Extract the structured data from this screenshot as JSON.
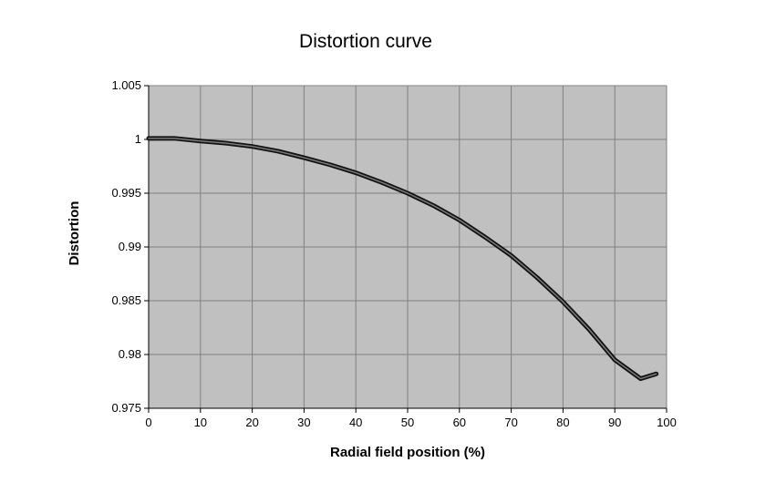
{
  "chart_data": {
    "type": "line",
    "title": "Distortion curve",
    "xlabel": "Radial field position (%)",
    "ylabel": "Distortion",
    "xlim": [
      0,
      100
    ],
    "ylim": [
      0.975,
      1.005
    ],
    "xticks": [
      0,
      10,
      20,
      30,
      40,
      50,
      60,
      70,
      80,
      90,
      100
    ],
    "yticks": [
      0.975,
      0.98,
      0.985,
      0.99,
      0.995,
      1,
      1.005
    ],
    "xtick_labels": [
      "0",
      "10",
      "20",
      "30",
      "40",
      "50",
      "60",
      "70",
      "80",
      "90",
      "100"
    ],
    "ytick_labels": [
      "0.975",
      "0.98",
      "0.985",
      "0.99",
      "0.995",
      "1",
      "1.005"
    ],
    "grid": true,
    "legend": "none",
    "colors": {
      "plot_background": "#c0c0c0",
      "gridline": "#808080",
      "line": "#333333",
      "line_outline": "#111111"
    },
    "series": [
      {
        "x": [
          0,
          5,
          10,
          15,
          20,
          25,
          30,
          35,
          40,
          45,
          50,
          55,
          60,
          65,
          70,
          75,
          80,
          85,
          90,
          95,
          98
        ],
        "y": [
          1.0001,
          1.0001,
          0.99985,
          0.99965,
          0.99935,
          0.9989,
          0.9983,
          0.99765,
          0.9969,
          0.996,
          0.995,
          0.99385,
          0.9925,
          0.9909,
          0.9892,
          0.98715,
          0.9849,
          0.98235,
          0.9795,
          0.97775,
          0.9782
        ]
      }
    ]
  }
}
